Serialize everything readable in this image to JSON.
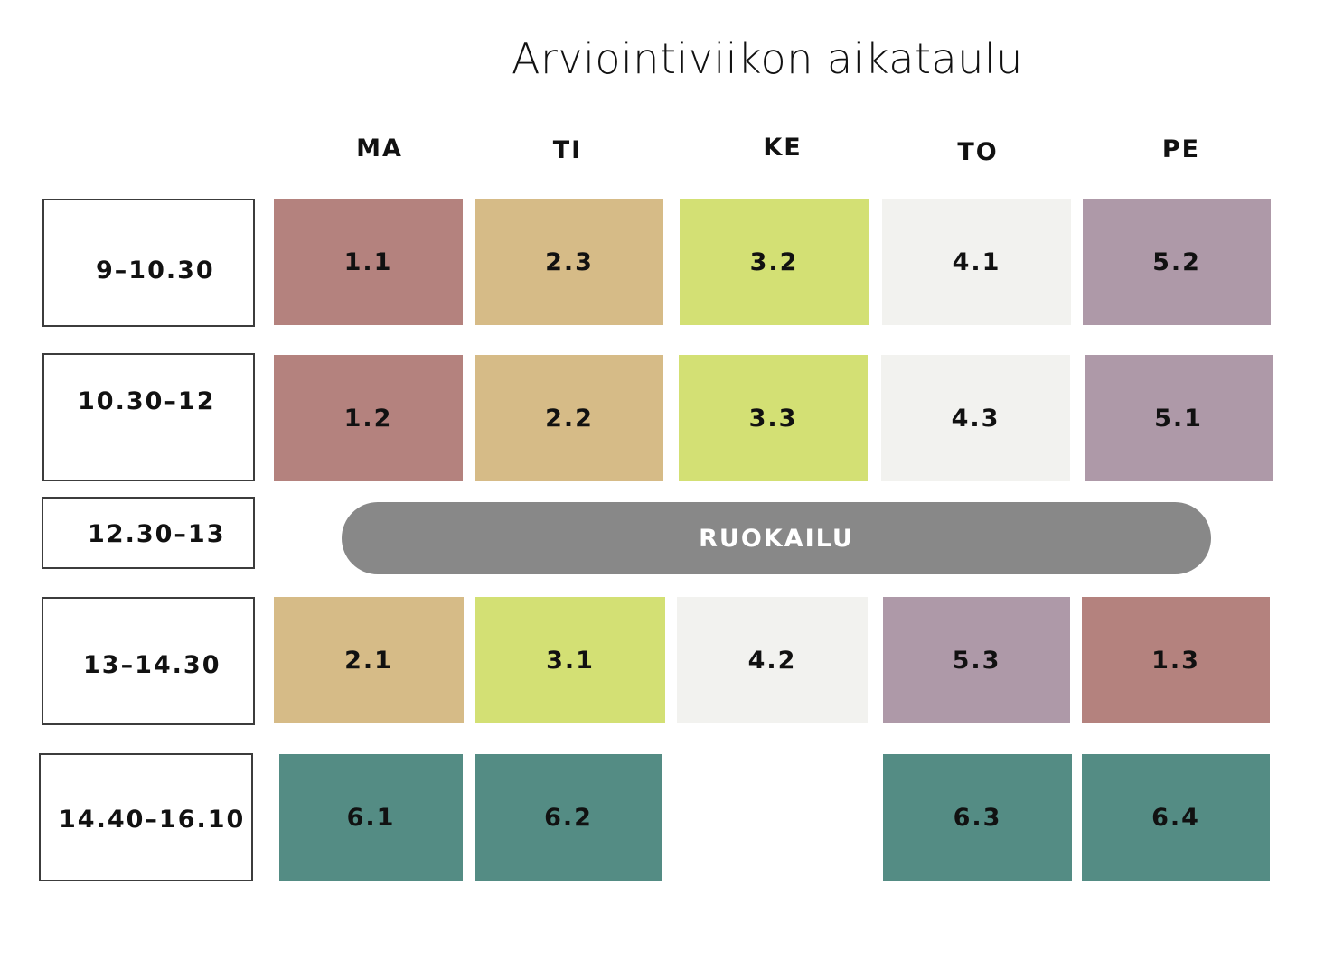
{
  "title": "Arviointiviikon aikataulu",
  "days": [
    "MA",
    "TI",
    "KE",
    "TO",
    "PE"
  ],
  "times": [
    "9–10.30",
    "10.30–12",
    "12.30–13",
    "13–14.30",
    "14.40–16.10"
  ],
  "lunch": "RUOKAILU",
  "colors": {
    "theme1": "#b4827e",
    "theme2": "#d6bb87",
    "theme3": "#d3e074",
    "theme4": "#f2f2ef",
    "theme5": "#ae99a8",
    "theme6": "#548c84",
    "lunch": "#888888"
  },
  "rows": [
    {
      "time": "9–10.30",
      "cells": [
        "1.1",
        "2.3",
        "3.2",
        "4.1",
        "5.2"
      ]
    },
    {
      "time": "10.30–12",
      "cells": [
        "1.2",
        "2.2",
        "3.3",
        "4.3",
        "5.1"
      ]
    },
    {
      "time": "13–14.30",
      "cells": [
        "2.1",
        "3.1",
        "4.2",
        "5.3",
        "1.3"
      ]
    },
    {
      "time": "14.40–16.10",
      "cells": [
        "6.1",
        "6.2",
        "",
        "6.3",
        "6.4"
      ]
    }
  ]
}
